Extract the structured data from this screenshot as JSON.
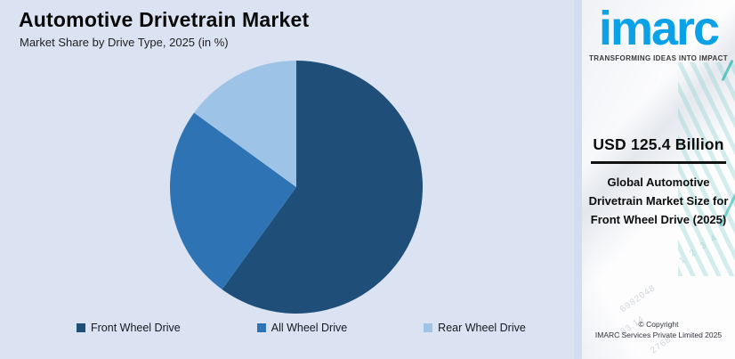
{
  "header": {
    "title": "Automotive Drivetrain Market",
    "subtitle": "Market Share by Drive Type, 2025 (in %)"
  },
  "chart_data": {
    "type": "pie",
    "title": "Automotive Drivetrain Market",
    "subtitle": "Market Share by Drive Type, 2025 (in %)",
    "unit": "%",
    "categories": [
      "Front Wheel Drive",
      "All Wheel Drive",
      "Rear Wheel Drive"
    ],
    "values": [
      60,
      25,
      15
    ],
    "colors": [
      "#1F4E79",
      "#2E74B5",
      "#9DC3E6"
    ],
    "legend_position": "bottom",
    "start_angle_deg": -90,
    "direction": "clockwise"
  },
  "sidebar": {
    "logo_text": "imarc",
    "tagline": "TRANSFORMING IDEAS INTO IMPACT",
    "stat_value": "USD 125.4 Billion",
    "stat_label": "Global Automotive Drivetrain Market Size for Front Wheel Drive (2025)",
    "copyright_line1": "© Copyright",
    "copyright_line2": "IMARC Services Private Limited 2025",
    "watermark_numbers": [
      "6982048",
      "783.14",
      "2768",
      "1 2 3 4"
    ]
  },
  "colors": {
    "canvas_bg": "#DBE3F2",
    "panel_strip": "#D3DCF0",
    "panel_bg": "#FDFDFE",
    "brand_blue": "#0AA1E6",
    "accent_teal": "#2FB9B4",
    "slice_front_wheel_drive": "#1F4E79",
    "slice_all_wheel_drive": "#2E74B5",
    "slice_rear_wheel_drive": "#9DC3E6"
  }
}
